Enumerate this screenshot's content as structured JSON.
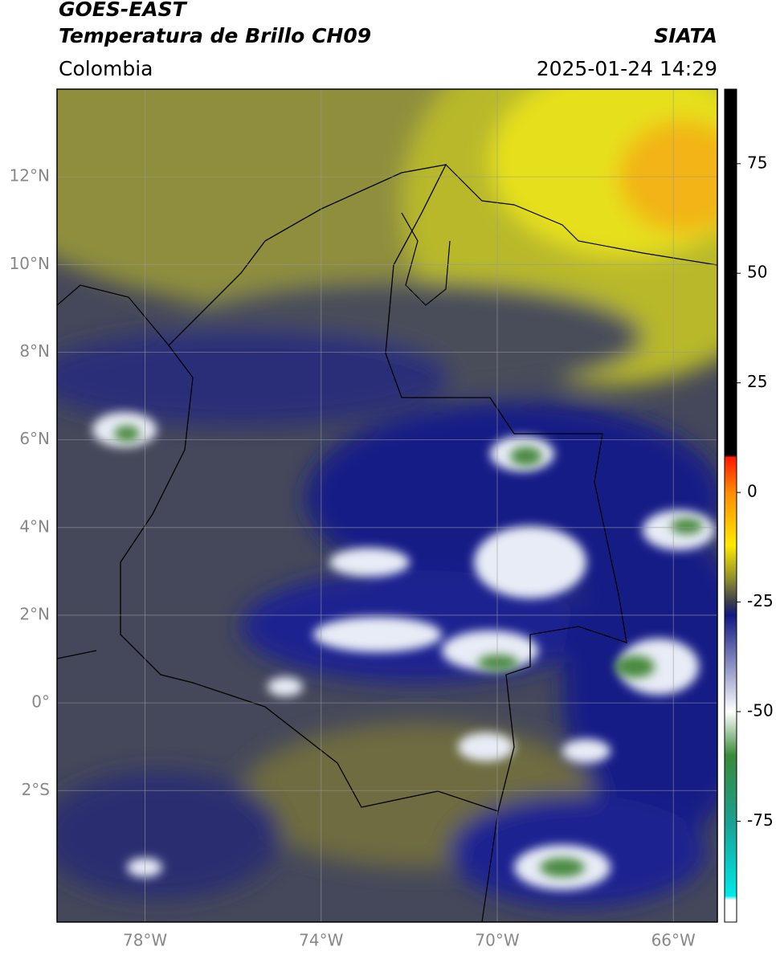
{
  "chart_data": {
    "type": "map",
    "title": "GOES-EAST",
    "subtitle": "Temperatura de Brillo CH09",
    "region": "Colombia",
    "source": "SIATA",
    "datetime": "2025-01-24 14:29",
    "xlim": [
      -80,
      -65
    ],
    "ylim": [
      -5,
      14
    ],
    "xticks": [
      {
        "value": -78,
        "label": "78°W"
      },
      {
        "value": -74,
        "label": "74°W"
      },
      {
        "value": -70,
        "label": "70°W"
      },
      {
        "value": -66,
        "label": "66°W"
      }
    ],
    "yticks": [
      {
        "value": 12,
        "label": "12°N"
      },
      {
        "value": 10,
        "label": "10°N"
      },
      {
        "value": 8,
        "label": "8°N"
      },
      {
        "value": 6,
        "label": "6°N"
      },
      {
        "value": 4,
        "label": "4°N"
      },
      {
        "value": 2,
        "label": "2°N"
      },
      {
        "value": 0,
        "label": "0°"
      },
      {
        "value": -2,
        "label": "2°S"
      }
    ],
    "grid": true,
    "colorbar": {
      "lim": [
        -98,
        92
      ],
      "ticks": [
        75,
        50,
        25,
        0,
        -25,
        -50,
        -75
      ],
      "stops": [
        {
          "value": 92,
          "color": "#000000"
        },
        {
          "value": 8.5,
          "color": "#000000"
        },
        {
          "value": 8,
          "color": "#ff1a00"
        },
        {
          "value": 0,
          "color": "#ff8c00"
        },
        {
          "value": -12,
          "color": "#ffea00"
        },
        {
          "value": -20,
          "color": "#8a8a30"
        },
        {
          "value": -25,
          "color": "#3c3c4c"
        },
        {
          "value": -28,
          "color": "#101880"
        },
        {
          "value": -50,
          "color": "#ffffff"
        },
        {
          "value": -60,
          "color": "#3a8a3a"
        },
        {
          "value": -75,
          "color": "#1aa090"
        },
        {
          "value": -92,
          "color": "#00e8e8"
        },
        {
          "value": -93,
          "color": "#ffffff"
        },
        {
          "value": -98,
          "color": "#ffffff"
        }
      ]
    }
  }
}
